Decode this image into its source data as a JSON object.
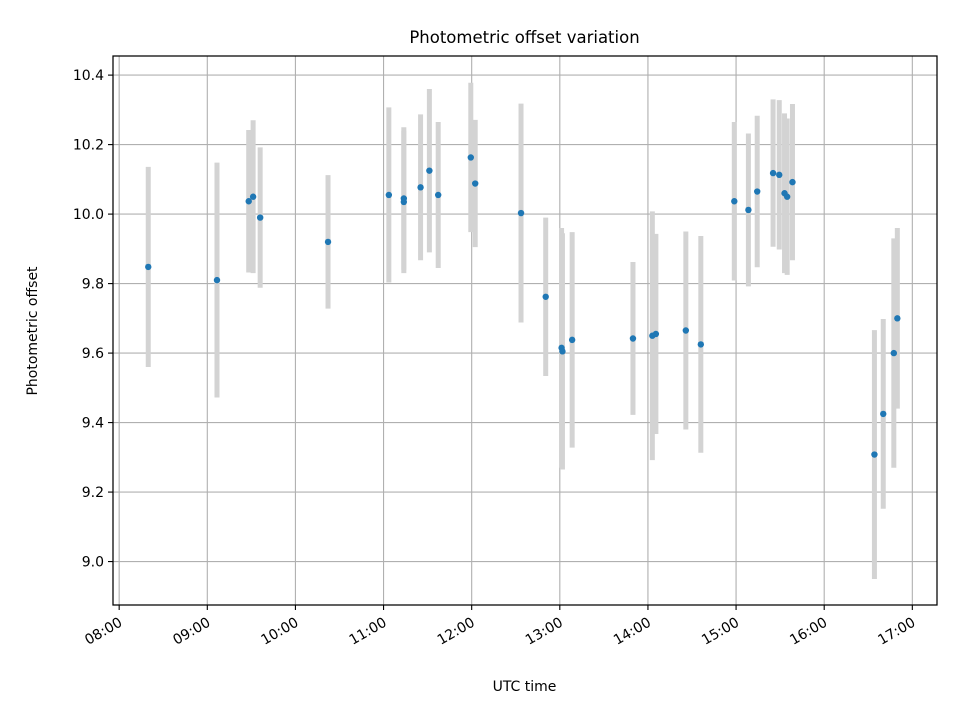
{
  "chart_data": {
    "type": "scatter",
    "title": "Photometric offset variation",
    "xlabel": "UTC time",
    "ylabel": "Photometric offset",
    "xlim": [
      7.93,
      17.28
    ],
    "ylim": [
      8.875,
      10.455
    ],
    "grid": true,
    "x_ticks": [
      8,
      9,
      10,
      11,
      12,
      13,
      14,
      15,
      16,
      17
    ],
    "x_tick_labels": [
      "08:00",
      "09:00",
      "10:00",
      "11:00",
      "12:00",
      "13:00",
      "14:00",
      "15:00",
      "16:00",
      "17:00"
    ],
    "y_ticks": [
      9.0,
      9.2,
      9.4,
      9.6,
      9.8,
      10.0,
      10.2,
      10.4
    ],
    "y_tick_labels": [
      "9.0",
      "9.2",
      "9.4",
      "9.6",
      "9.8",
      "10.0",
      "10.2",
      "10.4"
    ],
    "marker_color": "#1f77b4",
    "errorbar_color": "#d3d3d3",
    "points": [
      {
        "x": 8.33,
        "y": 9.848,
        "err": 0.288
      },
      {
        "x": 9.11,
        "y": 9.81,
        "err": 0.338
      },
      {
        "x": 9.47,
        "y": 10.037,
        "err": 0.205
      },
      {
        "x": 9.52,
        "y": 10.05,
        "err": 0.22
      },
      {
        "x": 9.6,
        "y": 9.99,
        "err": 0.202
      },
      {
        "x": 10.37,
        "y": 9.92,
        "err": 0.192
      },
      {
        "x": 11.06,
        "y": 10.055,
        "err": 0.252
      },
      {
        "x": 11.23,
        "y": 10.045,
        "err": 0.205
      },
      {
        "x": 11.23,
        "y": 10.035,
        "err": 0.205
      },
      {
        "x": 11.42,
        "y": 10.077,
        "err": 0.21
      },
      {
        "x": 11.52,
        "y": 10.125,
        "err": 0.235
      },
      {
        "x": 11.62,
        "y": 10.055,
        "err": 0.21
      },
      {
        "x": 11.99,
        "y": 10.163,
        "err": 0.215
      },
      {
        "x": 12.04,
        "y": 10.088,
        "err": 0.183
      },
      {
        "x": 12.56,
        "y": 10.003,
        "err": 0.315
      },
      {
        "x": 12.84,
        "y": 9.762,
        "err": 0.228
      },
      {
        "x": 13.02,
        "y": 9.615,
        "err": 0.345
      },
      {
        "x": 13.03,
        "y": 9.605,
        "err": 0.34
      },
      {
        "x": 13.14,
        "y": 9.638,
        "err": 0.31
      },
      {
        "x": 13.83,
        "y": 9.642,
        "err": 0.22
      },
      {
        "x": 14.05,
        "y": 9.65,
        "err": 0.358
      },
      {
        "x": 14.09,
        "y": 9.655,
        "err": 0.288
      },
      {
        "x": 14.43,
        "y": 9.665,
        "err": 0.285
      },
      {
        "x": 14.6,
        "y": 9.625,
        "err": 0.312
      },
      {
        "x": 14.98,
        "y": 10.037,
        "err": 0.228
      },
      {
        "x": 15.14,
        "y": 10.012,
        "err": 0.22
      },
      {
        "x": 15.24,
        "y": 10.065,
        "err": 0.218
      },
      {
        "x": 15.42,
        "y": 10.118,
        "err": 0.212
      },
      {
        "x": 15.49,
        "y": 10.113,
        "err": 0.215
      },
      {
        "x": 15.55,
        "y": 10.06,
        "err": 0.23
      },
      {
        "x": 15.58,
        "y": 10.05,
        "err": 0.225
      },
      {
        "x": 15.64,
        "y": 10.092,
        "err": 0.225
      },
      {
        "x": 16.57,
        "y": 9.308,
        "err": 0.358
      },
      {
        "x": 16.67,
        "y": 9.425,
        "err": 0.273
      },
      {
        "x": 16.79,
        "y": 9.6,
        "err": 0.33
      },
      {
        "x": 16.83,
        "y": 9.7,
        "err": 0.26
      }
    ]
  }
}
